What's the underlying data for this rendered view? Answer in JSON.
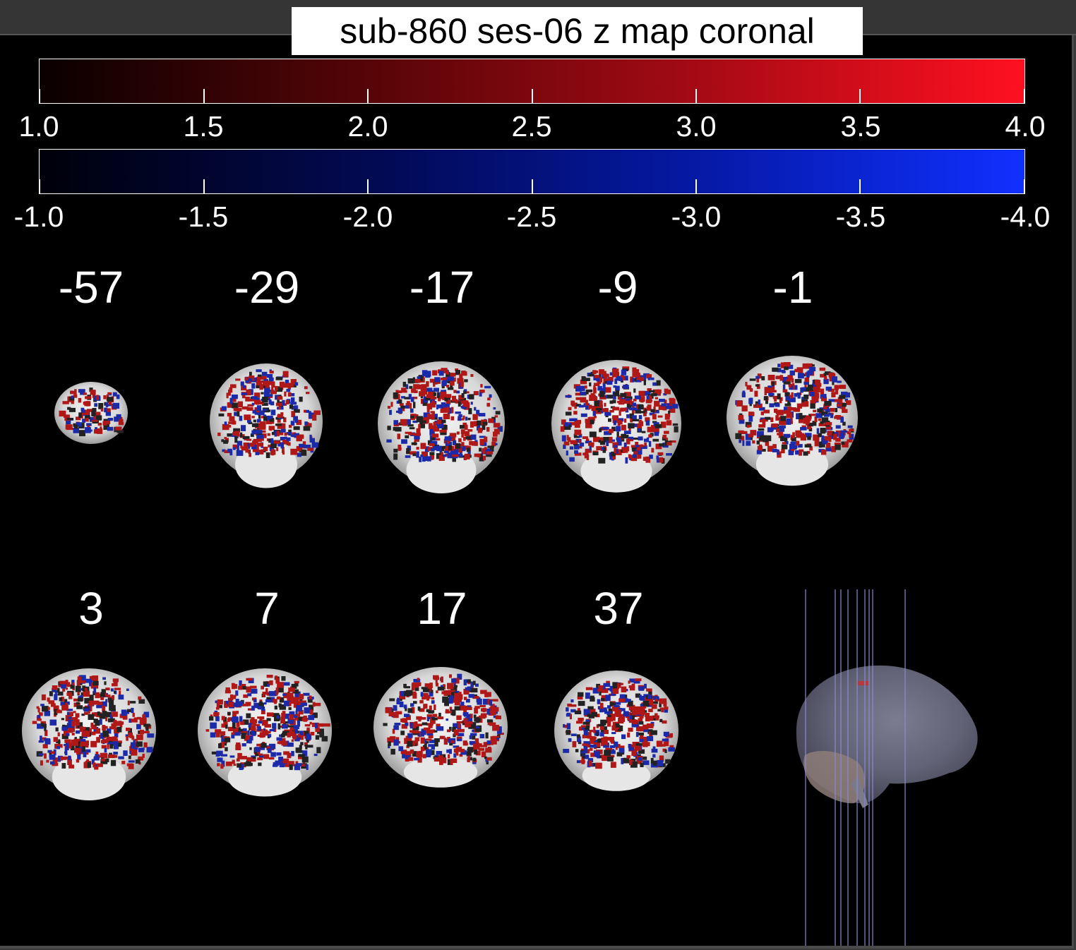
{
  "title": "sub-860 ses-06 z map coronal",
  "colorbars": {
    "positive": {
      "ticks": [
        "1.0",
        "1.5",
        "2.0",
        "2.5",
        "3.0",
        "3.5",
        "4.0"
      ],
      "color_low": "#0a0000",
      "color_high": "#ff1020"
    },
    "negative": {
      "ticks": [
        "-1.0",
        "-1.5",
        "-2.0",
        "-2.5",
        "-3.0",
        "-3.5",
        "-4.0"
      ],
      "color_low": "#00000a",
      "color_high": "#1030ff"
    }
  },
  "slices": {
    "row1": [
      "-57",
      "-29",
      "-17",
      "-9",
      "-1"
    ],
    "row2": [
      "3",
      "7",
      "17",
      "37"
    ]
  },
  "overlay_colors": {
    "positive": "#b01818",
    "negative": "#1a2aa8"
  },
  "glass_brain": {
    "view": "sagittal",
    "slice_lines_count": 9
  }
}
